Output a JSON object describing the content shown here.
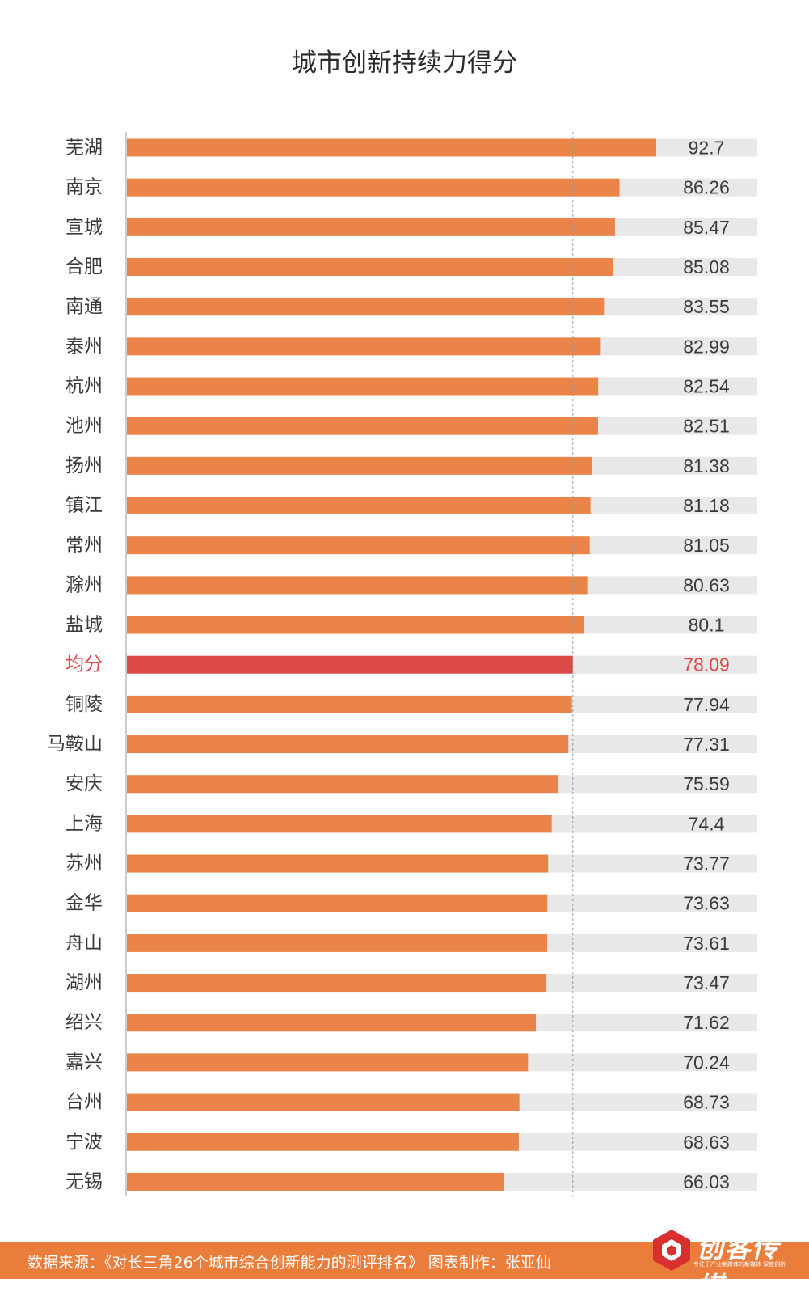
{
  "chart_data": {
    "type": "bar",
    "orientation": "horizontal",
    "title": "城市创新持续力得分",
    "categories": [
      "芜湖",
      "南京",
      "宣城",
      "合肥",
      "南通",
      "泰州",
      "杭州",
      "池州",
      "扬州",
      "镇江",
      "常州",
      "滁州",
      "盐城",
      "均分",
      "铜陵",
      "马鞍山",
      "安庆",
      "上海",
      "苏州",
      "金华",
      "舟山",
      "湖州",
      "绍兴",
      "嘉兴",
      "台州",
      "宁波",
      "无锡"
    ],
    "values": [
      92.7,
      86.26,
      85.47,
      85.08,
      83.55,
      82.99,
      82.54,
      82.51,
      81.38,
      81.18,
      81.05,
      80.63,
      80.1,
      78.09,
      77.94,
      77.31,
      75.59,
      74.4,
      73.77,
      73.63,
      73.61,
      73.47,
      71.62,
      70.24,
      68.73,
      68.63,
      66.03
    ],
    "labels": [
      "92.7",
      "86.26",
      "85.47",
      "85.08",
      "83.55",
      "82.99",
      "82.54",
      "82.51",
      "81.38",
      "81.18",
      "81.05",
      "80.63",
      "80.1",
      "78.09",
      "77.94",
      "77.31",
      "75.59",
      "74.4",
      "73.77",
      "73.63",
      "73.61",
      "73.47",
      "71.62",
      "70.24",
      "68.73",
      "68.63",
      "66.03"
    ],
    "highlight_category": "均分",
    "reference_line": 78.09,
    "xlim": [
      0,
      100
    ],
    "grid": false,
    "legend": "none",
    "colors": {
      "bar": "#eb8448",
      "highlight": "#dd4848",
      "track": "#e8e8e8",
      "label": "#3a3a3a",
      "highlight_label": "#dd4848",
      "reference_line": "#9a9a9a",
      "axis": "#9a9a9a"
    }
  },
  "footer": {
    "source": "数据来源：《对长三角26个城市综合创新能力的测评排名》  图表制作：张亚仙",
    "background": "#eb7d3c"
  },
  "logo": {
    "name": "创客传媒",
    "tagline": "专注于产业新媒体的新媒体 深度剖析",
    "icon": "brand-cube-icon"
  }
}
